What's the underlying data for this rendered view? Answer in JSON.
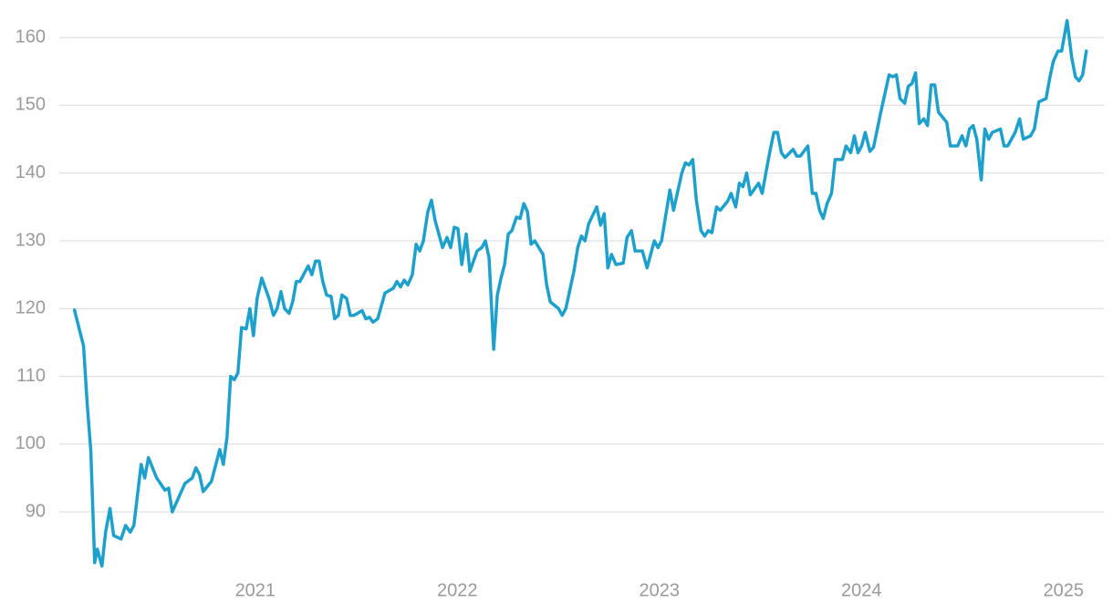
{
  "chart_data": {
    "type": "line",
    "x": [
      2020.105,
      2020.15,
      2020.168,
      2020.186,
      2020.205,
      2020.218,
      2020.241,
      2020.259,
      2020.281,
      2020.299,
      2020.336,
      2020.358,
      2020.381,
      2020.399,
      2020.435,
      2020.453,
      2020.471,
      2020.512,
      2020.553,
      2020.571,
      2020.589,
      2020.652,
      2020.688,
      2020.706,
      2020.724,
      2020.742,
      2020.783,
      2020.824,
      2020.842,
      2020.86,
      2020.878,
      2020.896,
      2020.914,
      2020.932,
      2020.955,
      2020.973,
      2020.991,
      2021.009,
      2021.032,
      2021.068,
      2021.09,
      2021.108,
      2021.127,
      2021.145,
      2021.167,
      2021.185,
      2021.203,
      2021.221,
      2021.262,
      2021.28,
      2021.298,
      2021.316,
      2021.334,
      2021.353,
      2021.375,
      2021.393,
      2021.411,
      2021.429,
      2021.452,
      2021.47,
      2021.488,
      2021.529,
      2021.547,
      2021.565,
      2021.583,
      2021.606,
      2021.642,
      2021.683,
      2021.701,
      2021.719,
      2021.737,
      2021.755,
      2021.777,
      2021.796,
      2021.814,
      2021.832,
      2021.854,
      2021.872,
      2021.89,
      2021.927,
      2021.949,
      2021.967,
      2021.985,
      2022.003,
      2022.022,
      2022.044,
      2022.062,
      2022.098,
      2022.121,
      2022.139,
      2022.157,
      2022.18,
      2022.198,
      2022.216,
      2022.234,
      2022.252,
      2022.27,
      2022.293,
      2022.311,
      2022.329,
      2022.347,
      2022.365,
      2022.383,
      2022.424,
      2022.442,
      2022.46,
      2022.501,
      2022.519,
      2022.537,
      2022.577,
      2022.596,
      2022.614,
      2022.632,
      2022.65,
      2022.69,
      2022.709,
      2022.727,
      2022.745,
      2022.763,
      2022.785,
      2022.821,
      2022.84,
      2022.862,
      2022.88,
      2022.916,
      2022.939,
      2022.975,
      2022.993,
      2023.011,
      2023.052,
      2023.07,
      2023.111,
      2023.129,
      2023.147,
      2023.165,
      2023.183,
      2023.206,
      2023.224,
      2023.242,
      2023.26,
      2023.283,
      2023.301,
      2023.337,
      2023.355,
      2023.378,
      2023.396,
      2023.414,
      2023.432,
      2023.45,
      2023.491,
      2023.509,
      2023.527,
      2023.549,
      2023.567,
      2023.585,
      2023.604,
      2023.622,
      2023.662,
      2023.68,
      2023.698,
      2023.735,
      2023.757,
      2023.775,
      2023.793,
      2023.811,
      2023.83,
      2023.852,
      2023.87,
      2023.906,
      2023.924,
      2023.947,
      2023.965,
      2023.983,
      2024.001,
      2024.019,
      2024.042,
      2024.06,
      2024.096,
      2024.137,
      2024.155,
      2024.173,
      2024.191,
      2024.214,
      2024.232,
      2024.25,
      2024.268,
      2024.286,
      2024.309,
      2024.327,
      2024.345,
      2024.363,
      2024.381,
      2024.422,
      2024.44,
      2024.476,
      2024.498,
      2024.517,
      2024.535,
      2024.553,
      2024.571,
      2024.593,
      2024.611,
      2024.63,
      2024.648,
      2024.688,
      2024.706,
      2024.724,
      2024.761,
      2024.783,
      2024.801,
      2024.837,
      2024.856,
      2024.878,
      2024.914,
      2024.932,
      2024.95,
      2024.973,
      2024.991,
      2025.018,
      2025.041,
      2025.059,
      2025.077,
      2025.095,
      2025.113
    ],
    "series": [
      {
        "color": "#1ea0cc",
        "values": [
          119.8,
          114.5,
          106,
          99,
          82.5,
          84.5,
          82,
          87,
          90.5,
          86.5,
          86,
          88,
          87,
          88,
          97,
          95,
          98,
          95,
          93.2,
          93.5,
          90,
          94.2,
          95,
          96.5,
          95.5,
          93,
          94.5,
          99.2,
          97,
          101,
          110,
          109.5,
          110.5,
          117.2,
          117,
          120,
          116,
          121.5,
          124.5,
          121.5,
          119,
          120,
          122.5,
          120,
          119.3,
          121,
          124,
          124,
          126.3,
          125,
          127,
          127,
          124,
          122,
          121.8,
          118.5,
          119,
          122,
          121.5,
          119,
          119,
          119.7,
          118.5,
          118.7,
          118,
          118.5,
          122.3,
          123,
          124,
          123.2,
          124.2,
          123.5,
          125,
          129.5,
          128.5,
          130,
          134.3,
          136,
          133,
          129,
          130.5,
          129,
          132,
          131.8,
          126.5,
          131,
          125.5,
          128.5,
          129,
          130,
          127.5,
          114,
          122,
          124.5,
          126.5,
          131,
          131.5,
          133.5,
          133.3,
          135.5,
          134.3,
          129.5,
          130,
          128,
          123.5,
          121,
          120,
          119,
          120,
          125.5,
          129,
          130.7,
          130,
          132.5,
          135,
          132.3,
          134,
          126,
          128,
          126.5,
          126.7,
          130.5,
          131.5,
          128.5,
          128.5,
          126,
          130,
          129,
          130,
          137.5,
          134.5,
          140,
          141.5,
          141.2,
          142,
          136,
          131.5,
          130.7,
          131.5,
          131.2,
          135,
          134.5,
          135.8,
          137,
          135,
          138.5,
          138,
          140,
          136.8,
          138.5,
          137,
          140,
          143.5,
          146,
          146,
          143,
          142.3,
          143.5,
          142.5,
          142.5,
          144,
          137,
          137,
          134.5,
          133.3,
          135.5,
          137,
          142,
          142,
          144,
          143,
          145.5,
          143,
          144,
          146,
          143.2,
          143.8,
          149,
          154.5,
          154.2,
          154.5,
          151,
          150.3,
          152.8,
          153.2,
          154.8,
          147.3,
          148,
          147,
          153,
          153,
          149,
          147.5,
          144,
          144,
          145.5,
          144,
          146.5,
          147,
          145,
          139,
          146.5,
          145,
          146,
          146.5,
          144,
          144,
          146,
          148,
          145,
          145.5,
          146.5,
          150.5,
          151,
          154,
          156.5,
          158,
          158,
          162.5,
          157,
          154.2,
          153.6,
          154.5,
          158
        ]
      }
    ],
    "xlim": [
      2020.03,
      2025.2
    ],
    "xticks": [
      2021,
      2022,
      2023,
      2024,
      2025
    ],
    "ylim": [
      81,
      165
    ],
    "yticks": [
      90,
      100,
      110,
      120,
      130,
      140,
      150,
      160
    ],
    "grid": true
  }
}
